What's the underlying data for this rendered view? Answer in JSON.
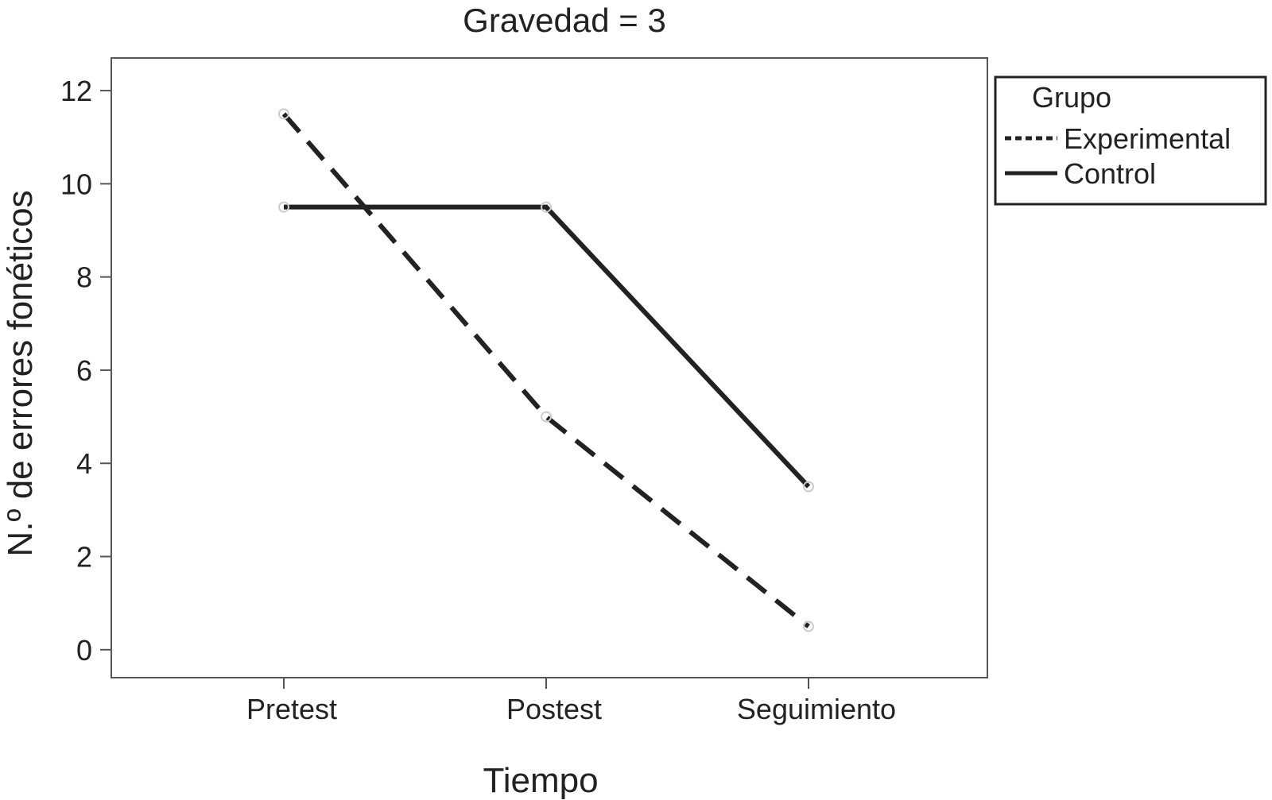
{
  "chart_data": {
    "type": "line",
    "title": "Gravedad = 3",
    "xlabel": "Tiempo",
    "ylabel": "N.º de errores fonéticos",
    "categories": [
      "Pretest",
      "Postest",
      "Seguimiento"
    ],
    "ylim": [
      -0.6,
      12.7
    ],
    "yticks": [
      0,
      2,
      4,
      6,
      8,
      10,
      12
    ],
    "grid": false,
    "legend": {
      "title": "Grupo",
      "placement": "right"
    },
    "series": [
      {
        "name": "Experimental",
        "values": [
          11.5,
          5.0,
          0.5
        ],
        "style": "dashed",
        "color": "#222222"
      },
      {
        "name": "Control",
        "values": [
          9.5,
          9.5,
          3.5
        ],
        "style": "solid",
        "color": "#222222"
      }
    ]
  }
}
